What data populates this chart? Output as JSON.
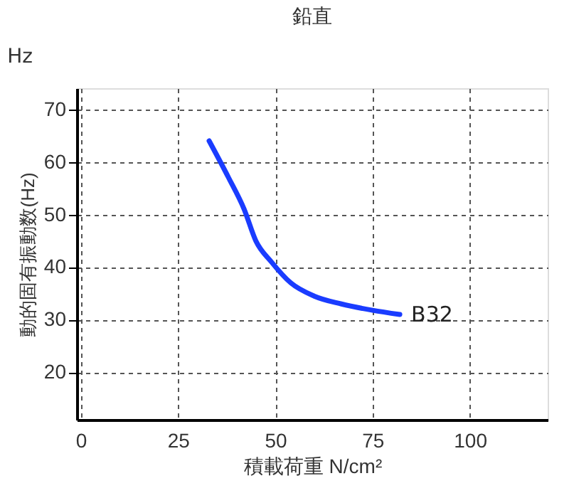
{
  "chart_data": {
    "type": "line",
    "title": "鉛直",
    "xlabel": "積載荷重 N/cm²",
    "ylabel": "動的固有振動数(Hz)",
    "x": [
      33,
      38,
      42,
      45,
      49,
      54,
      60,
      67,
      75,
      82
    ],
    "series": [
      {
        "name": "B32",
        "color": "#1a3cff",
        "values": [
          64,
          57,
          51,
          45,
          41,
          37,
          34.5,
          33,
          31.8,
          31
        ]
      }
    ],
    "xlim": [
      -1,
      120
    ],
    "xticks": [
      0,
      25,
      50,
      75,
      100
    ],
    "ylim": [
      11,
      74
    ],
    "yticks": [
      20,
      30,
      40,
      50,
      60,
      70
    ],
    "grid": true,
    "line_style": "solid",
    "marker": "none",
    "annotations": [
      "Hz"
    ]
  }
}
